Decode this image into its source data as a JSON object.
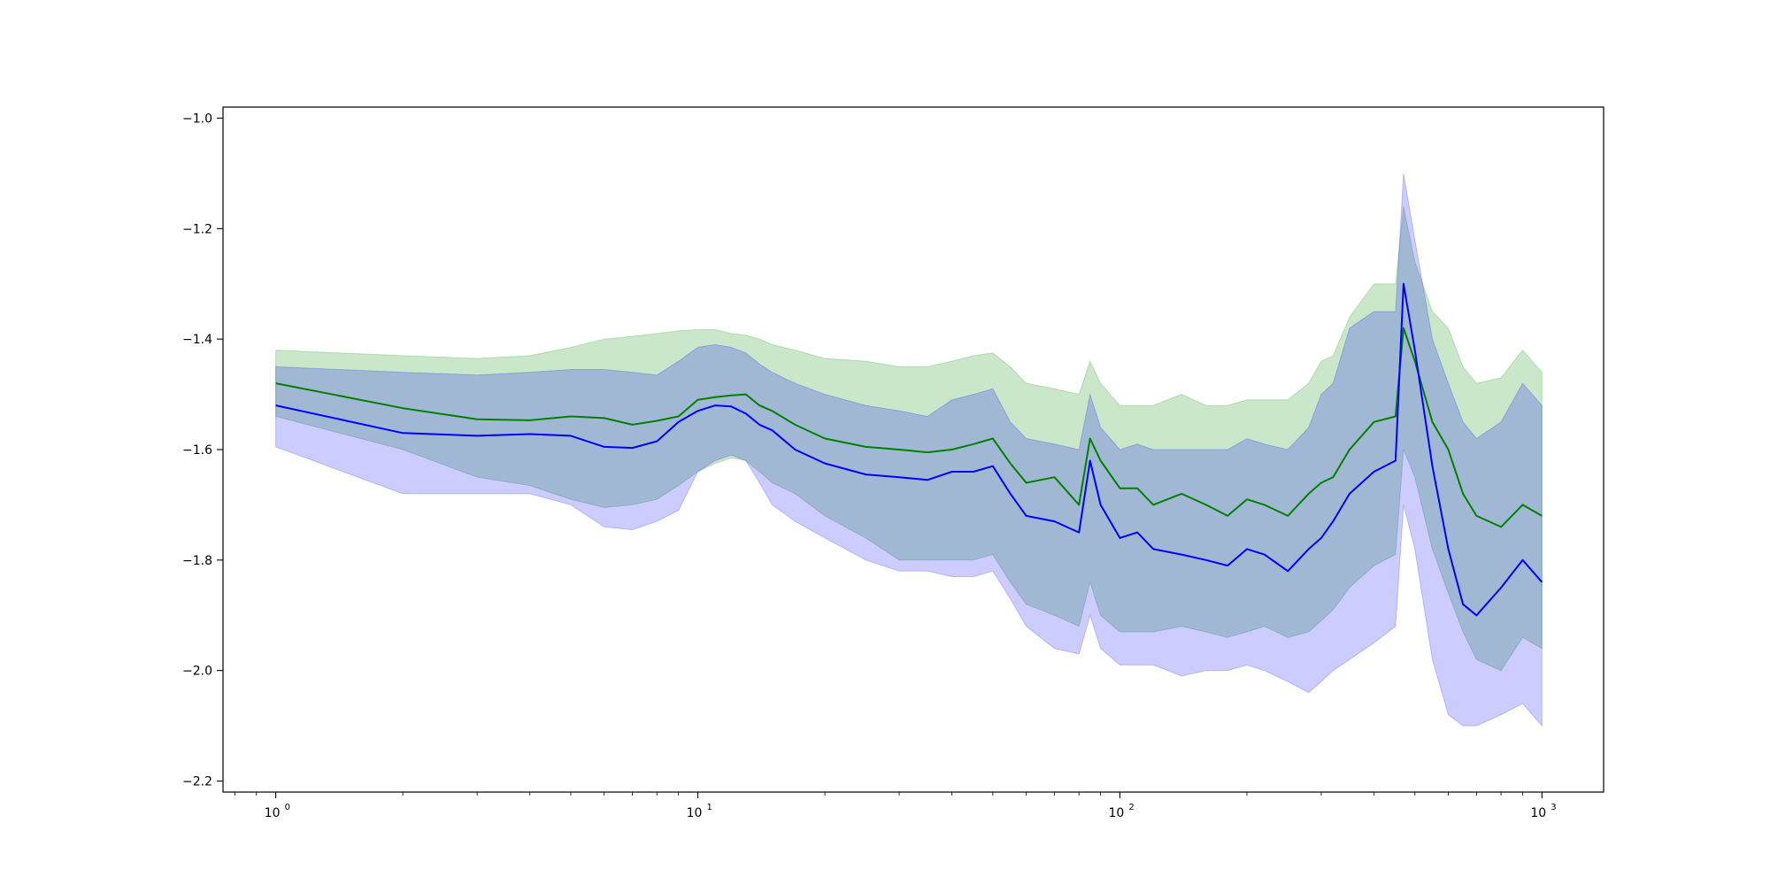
{
  "chart_data": {
    "type": "line",
    "title": "",
    "xlabel": "",
    "ylabel": "",
    "xscale": "log",
    "xlim": [
      0.75,
      1400
    ],
    "ylim": [
      -2.22,
      -0.98
    ],
    "grid": false,
    "legend": "none",
    "x_ticks": [
      {
        "base": "10",
        "exp": "0",
        "value": 1
      },
      {
        "base": "10",
        "exp": "1",
        "value": 10
      },
      {
        "base": "10",
        "exp": "2",
        "value": 100
      },
      {
        "base": "10",
        "exp": "3",
        "value": 1000
      }
    ],
    "y_ticks": [
      {
        "label": "−1.0",
        "value": -1.0
      },
      {
        "label": "−1.2",
        "value": -1.2
      },
      {
        "label": "−1.4",
        "value": -1.4
      },
      {
        "label": "−1.6",
        "value": -1.6
      },
      {
        "label": "−1.8",
        "value": -1.8
      },
      {
        "label": "−2.0",
        "value": -2.0
      },
      {
        "label": "−2.2",
        "value": -2.2
      }
    ],
    "series": [
      {
        "color": "#008000",
        "band_color": "#2ca02c",
        "band_opacity": 0.25,
        "x": [
          1,
          2,
          3,
          4,
          5,
          6,
          7,
          8,
          9,
          10,
          11,
          12,
          13,
          14,
          15,
          17,
          20,
          25,
          30,
          35,
          40,
          45,
          50,
          55,
          60,
          70,
          80,
          85,
          90,
          100,
          110,
          120,
          140,
          160,
          180,
          200,
          220,
          250,
          280,
          300,
          320,
          350,
          400,
          450,
          470,
          500,
          550,
          600,
          650,
          700,
          800,
          900,
          1000
        ],
        "y": [
          -1.48,
          -1.525,
          -1.545,
          -1.547,
          -1.54,
          -1.543,
          -1.555,
          -1.548,
          -1.54,
          -1.51,
          -1.505,
          -1.502,
          -1.5,
          -1.52,
          -1.53,
          -1.555,
          -1.58,
          -1.595,
          -1.6,
          -1.605,
          -1.6,
          -1.59,
          -1.58,
          -1.625,
          -1.66,
          -1.65,
          -1.7,
          -1.58,
          -1.62,
          -1.67,
          -1.67,
          -1.7,
          -1.68,
          -1.7,
          -1.72,
          -1.69,
          -1.7,
          -1.72,
          -1.68,
          -1.66,
          -1.65,
          -1.6,
          -1.55,
          -1.54,
          -1.38,
          -1.44,
          -1.55,
          -1.6,
          -1.68,
          -1.72,
          -1.74,
          -1.7,
          -1.72
        ],
        "lower": [
          -1.54,
          -1.6,
          -1.65,
          -1.665,
          -1.69,
          -1.705,
          -1.7,
          -1.69,
          -1.665,
          -1.64,
          -1.625,
          -1.615,
          -1.62,
          -1.64,
          -1.66,
          -1.68,
          -1.72,
          -1.76,
          -1.8,
          -1.8,
          -1.8,
          -1.8,
          -1.79,
          -1.84,
          -1.88,
          -1.9,
          -1.92,
          -1.84,
          -1.9,
          -1.93,
          -1.93,
          -1.93,
          -1.92,
          -1.93,
          -1.94,
          -1.93,
          -1.92,
          -1.94,
          -1.93,
          -1.91,
          -1.89,
          -1.85,
          -1.81,
          -1.79,
          -1.6,
          -1.65,
          -1.78,
          -1.86,
          -1.93,
          -1.98,
          -2.0,
          -1.94,
          -1.96
        ],
        "upper": [
          -1.42,
          -1.43,
          -1.435,
          -1.43,
          -1.415,
          -1.4,
          -1.395,
          -1.39,
          -1.385,
          -1.383,
          -1.383,
          -1.39,
          -1.393,
          -1.4,
          -1.41,
          -1.42,
          -1.435,
          -1.44,
          -1.45,
          -1.45,
          -1.44,
          -1.43,
          -1.425,
          -1.45,
          -1.48,
          -1.49,
          -1.5,
          -1.44,
          -1.48,
          -1.52,
          -1.52,
          -1.52,
          -1.5,
          -1.52,
          -1.52,
          -1.51,
          -1.51,
          -1.51,
          -1.48,
          -1.44,
          -1.43,
          -1.36,
          -1.3,
          -1.3,
          -1.16,
          -1.26,
          -1.35,
          -1.38,
          -1.45,
          -1.48,
          -1.47,
          -1.42,
          -1.46
        ]
      },
      {
        "color": "#0000ff",
        "band_color": "#0000ff",
        "band_opacity": 0.2,
        "x": [
          1,
          2,
          3,
          4,
          5,
          6,
          7,
          8,
          9,
          10,
          11,
          12,
          13,
          14,
          15,
          17,
          20,
          25,
          30,
          35,
          40,
          45,
          50,
          55,
          60,
          70,
          80,
          85,
          90,
          100,
          110,
          120,
          140,
          160,
          180,
          200,
          220,
          250,
          280,
          300,
          320,
          350,
          400,
          450,
          470,
          500,
          550,
          600,
          650,
          700,
          800,
          900,
          1000
        ],
        "y": [
          -1.52,
          -1.57,
          -1.575,
          -1.572,
          -1.575,
          -1.595,
          -1.597,
          -1.585,
          -1.55,
          -1.53,
          -1.52,
          -1.522,
          -1.535,
          -1.555,
          -1.565,
          -1.6,
          -1.625,
          -1.645,
          -1.65,
          -1.655,
          -1.64,
          -1.64,
          -1.63,
          -1.68,
          -1.72,
          -1.73,
          -1.75,
          -1.62,
          -1.7,
          -1.76,
          -1.75,
          -1.78,
          -1.79,
          -1.8,
          -1.81,
          -1.78,
          -1.79,
          -1.82,
          -1.78,
          -1.76,
          -1.73,
          -1.68,
          -1.64,
          -1.62,
          -1.3,
          -1.42,
          -1.63,
          -1.78,
          -1.88,
          -1.9,
          -1.85,
          -1.8,
          -1.84
        ],
        "lower": [
          -1.595,
          -1.68,
          -1.68,
          -1.68,
          -1.7,
          -1.74,
          -1.745,
          -1.73,
          -1.71,
          -1.64,
          -1.62,
          -1.61,
          -1.62,
          -1.66,
          -1.7,
          -1.73,
          -1.76,
          -1.8,
          -1.82,
          -1.82,
          -1.83,
          -1.83,
          -1.82,
          -1.87,
          -1.92,
          -1.96,
          -1.97,
          -1.9,
          -1.96,
          -1.99,
          -1.99,
          -1.99,
          -2.01,
          -2.0,
          -2.0,
          -1.99,
          -2.0,
          -2.02,
          -2.04,
          -2.02,
          -2.0,
          -1.98,
          -1.95,
          -1.92,
          -1.7,
          -1.78,
          -1.98,
          -2.08,
          -2.1,
          -2.1,
          -2.08,
          -2.06,
          -2.1
        ],
        "upper": [
          -1.45,
          -1.46,
          -1.465,
          -1.46,
          -1.455,
          -1.455,
          -1.46,
          -1.465,
          -1.44,
          -1.415,
          -1.41,
          -1.415,
          -1.425,
          -1.445,
          -1.46,
          -1.48,
          -1.5,
          -1.52,
          -1.53,
          -1.54,
          -1.51,
          -1.5,
          -1.49,
          -1.55,
          -1.58,
          -1.59,
          -1.6,
          -1.5,
          -1.56,
          -1.6,
          -1.59,
          -1.6,
          -1.6,
          -1.6,
          -1.6,
          -1.58,
          -1.59,
          -1.6,
          -1.56,
          -1.5,
          -1.48,
          -1.38,
          -1.35,
          -1.35,
          -1.1,
          -1.22,
          -1.4,
          -1.48,
          -1.55,
          -1.58,
          -1.55,
          -1.48,
          -1.52
        ]
      }
    ]
  }
}
